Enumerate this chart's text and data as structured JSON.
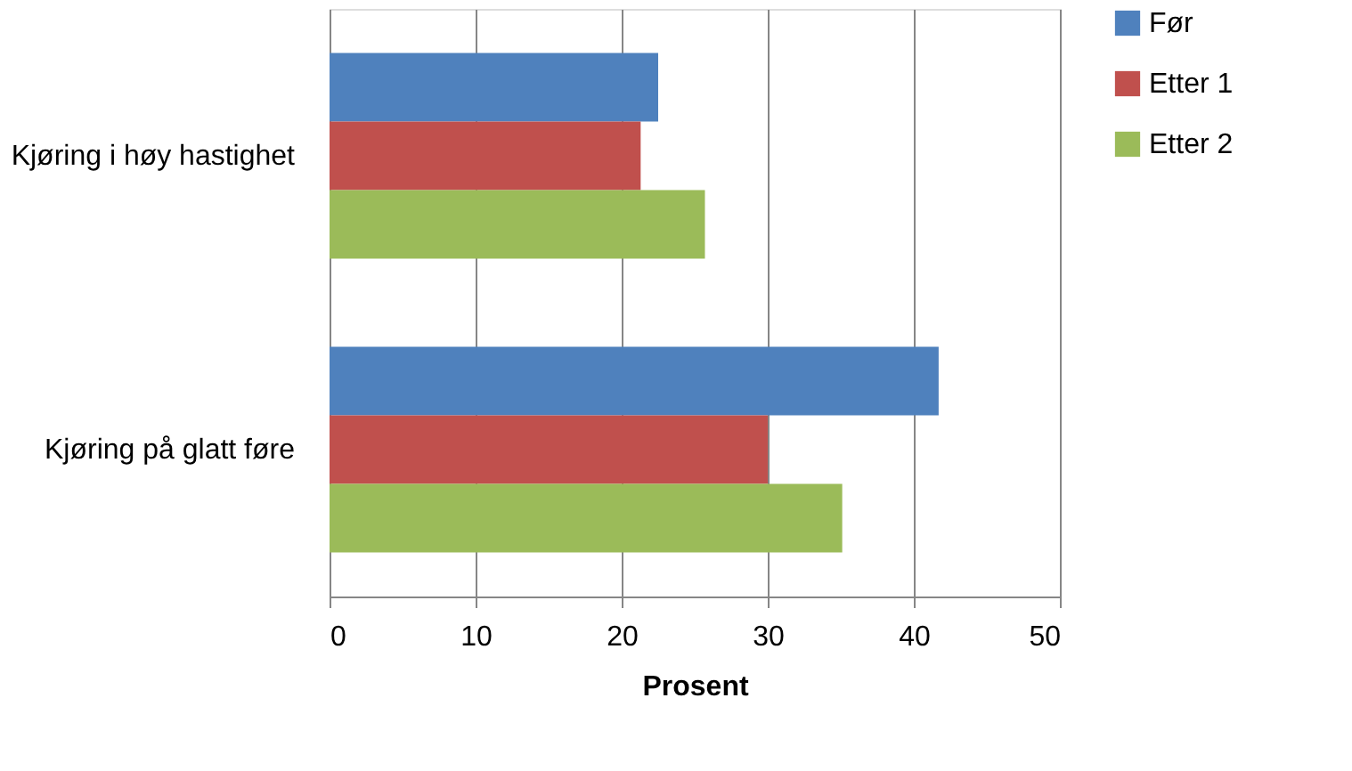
{
  "chart_data": {
    "type": "bar",
    "orientation": "horizontal",
    "xlabel": "Prosent",
    "categories": [
      "Kjøring i høy hastighet",
      "Kjøring på glatt føre"
    ],
    "series": [
      {
        "name": "Før",
        "color": "#4f81bd",
        "values": [
          22.5,
          41.7
        ]
      },
      {
        "name": "Etter 1",
        "color": "#c0504d",
        "values": [
          21.3,
          30.0
        ]
      },
      {
        "name": "Etter 2",
        "color": "#9bbb59",
        "values": [
          25.7,
          35.1
        ]
      }
    ],
    "xlim": [
      0,
      50
    ],
    "xticks": [
      0,
      10,
      20,
      30,
      40,
      50
    ],
    "grid": "x",
    "legend": "right"
  }
}
